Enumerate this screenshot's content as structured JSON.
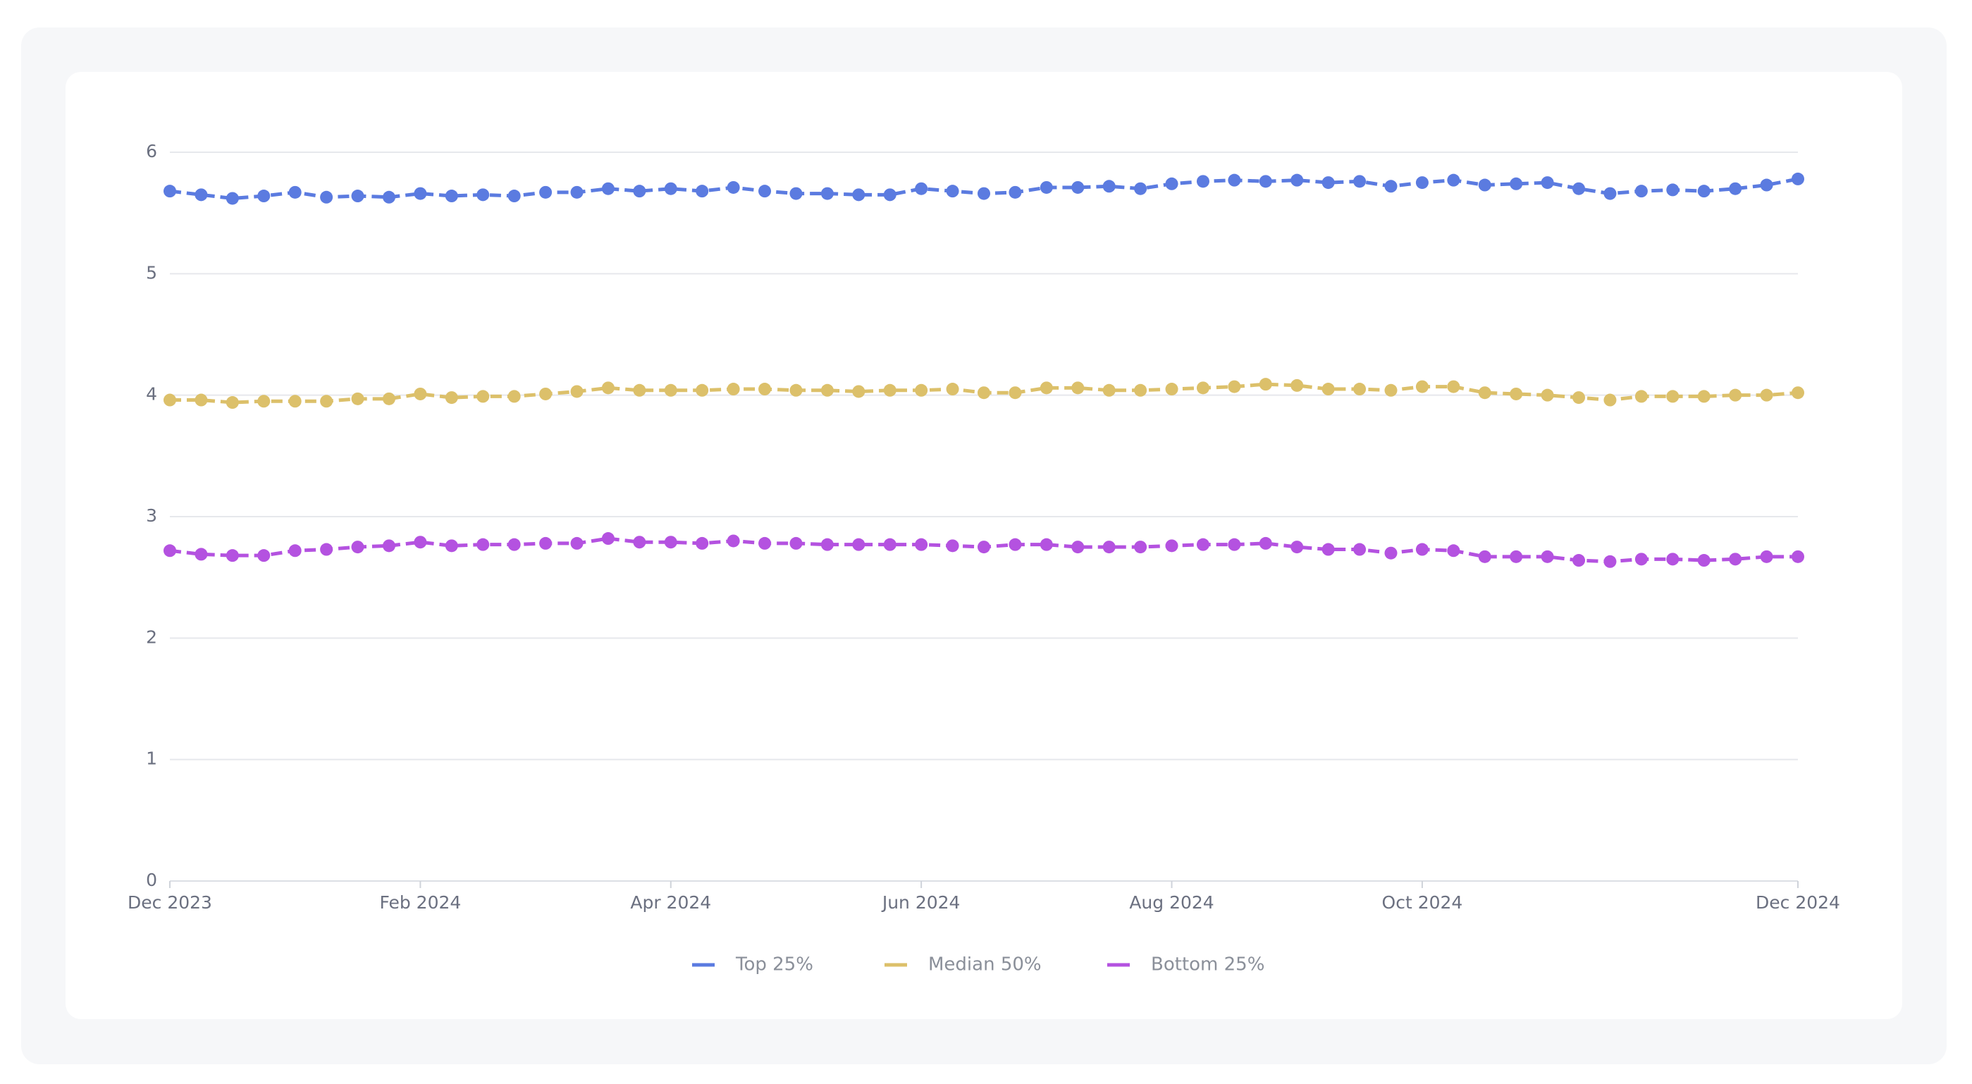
{
  "chart_data": {
    "type": "line",
    "x": [
      0,
      1,
      2,
      3,
      4,
      5,
      6,
      7,
      8,
      9,
      10,
      11,
      12,
      13,
      14,
      15,
      16,
      17,
      18,
      19,
      20,
      21,
      22,
      23,
      24,
      25,
      26,
      27,
      28,
      29,
      30,
      31,
      32,
      33,
      34,
      35,
      36,
      37,
      38,
      39,
      40,
      41,
      42,
      43,
      44,
      45,
      46,
      47,
      48,
      49,
      50,
      51,
      52
    ],
    "xlim": [
      0,
      52
    ],
    "xticks": [
      {
        "value": 0,
        "label": "Dec 2023"
      },
      {
        "value": 8,
        "label": "Feb 2024"
      },
      {
        "value": 16,
        "label": "Apr 2024"
      },
      {
        "value": 24,
        "label": "Jun 2024"
      },
      {
        "value": 32,
        "label": "Aug 2024"
      },
      {
        "value": 40,
        "label": "Oct 2024"
      },
      {
        "value": 52,
        "label": "Dec 2024"
      }
    ],
    "ylim": [
      0,
      6
    ],
    "yticks": [
      0,
      1,
      2,
      3,
      4,
      5,
      6
    ],
    "grid": true,
    "legend": "bottom",
    "series": [
      {
        "name": "Top 25%",
        "color": "#5b7be0",
        "values": [
          5.68,
          5.65,
          5.62,
          5.64,
          5.67,
          5.63,
          5.64,
          5.63,
          5.66,
          5.64,
          5.65,
          5.64,
          5.67,
          5.67,
          5.7,
          5.68,
          5.7,
          5.68,
          5.71,
          5.68,
          5.66,
          5.66,
          5.65,
          5.65,
          5.7,
          5.68,
          5.66,
          5.67,
          5.71,
          5.71,
          5.72,
          5.7,
          5.74,
          5.76,
          5.77,
          5.76,
          5.77,
          5.75,
          5.76,
          5.72,
          5.75,
          5.77,
          5.73,
          5.74,
          5.75,
          5.7,
          5.66,
          5.68,
          5.69,
          5.68,
          5.7,
          5.73,
          5.78
        ]
      },
      {
        "name": "Median 50%",
        "color": "#dcc06a",
        "values": [
          3.96,
          3.96,
          3.94,
          3.95,
          3.95,
          3.95,
          3.97,
          3.97,
          4.01,
          3.98,
          3.99,
          3.99,
          4.01,
          4.03,
          4.06,
          4.04,
          4.04,
          4.04,
          4.05,
          4.05,
          4.04,
          4.04,
          4.03,
          4.04,
          4.04,
          4.05,
          4.02,
          4.02,
          4.06,
          4.06,
          4.04,
          4.04,
          4.05,
          4.06,
          4.07,
          4.09,
          4.08,
          4.05,
          4.05,
          4.04,
          4.07,
          4.07,
          4.02,
          4.01,
          4.0,
          3.98,
          3.96,
          3.99,
          3.99,
          3.99,
          4.0,
          4.0,
          4.02
        ]
      },
      {
        "name": "Bottom 25%",
        "color": "#b452e0",
        "values": [
          2.72,
          2.69,
          2.68,
          2.68,
          2.72,
          2.73,
          2.75,
          2.76,
          2.79,
          2.76,
          2.77,
          2.77,
          2.78,
          2.78,
          2.82,
          2.79,
          2.79,
          2.78,
          2.8,
          2.78,
          2.78,
          2.77,
          2.77,
          2.77,
          2.77,
          2.76,
          2.75,
          2.77,
          2.77,
          2.75,
          2.75,
          2.75,
          2.76,
          2.77,
          2.77,
          2.78,
          2.75,
          2.73,
          2.73,
          2.7,
          2.73,
          2.72,
          2.67,
          2.67,
          2.67,
          2.64,
          2.63,
          2.65,
          2.65,
          2.64,
          2.65,
          2.67,
          2.67
        ]
      }
    ]
  }
}
